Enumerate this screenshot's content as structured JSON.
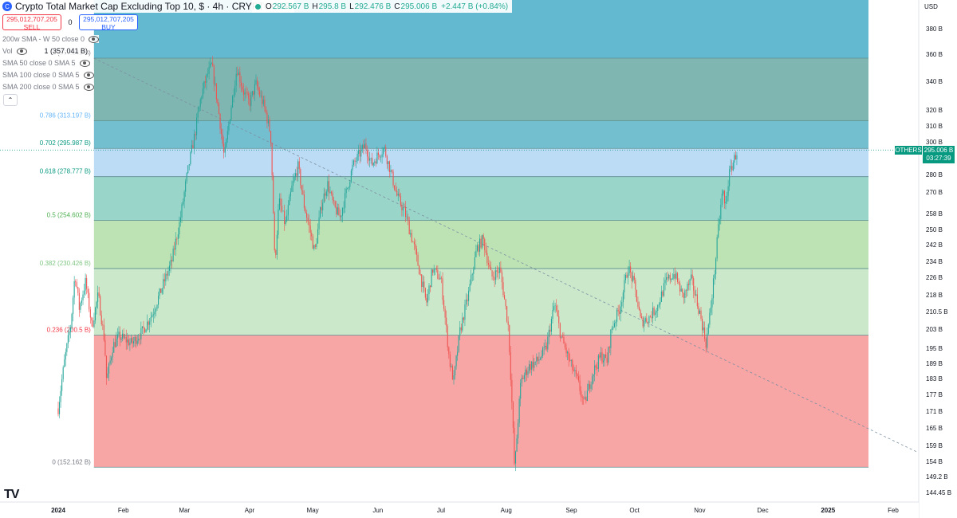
{
  "header": {
    "title": "Crypto Total Market Cap Excluding Top 10, $ · 4h · CRYPTOCAP",
    "logo_glyph": "C",
    "ohlc": {
      "o_label": "O",
      "o": "292.567 B",
      "h_label": "H",
      "h": "295.8 B",
      "l_label": "L",
      "l": "292.476 B",
      "c_label": "C",
      "c": "295.006 B",
      "change": "+2.447 B (+0.84%)"
    }
  },
  "trade": {
    "sell_price": "295,012,707,205",
    "sell_label": "SELL",
    "spread": "0",
    "buy_price": "295,012,707,205",
    "buy_label": "BUY"
  },
  "indicators": [
    {
      "label": "200w SMA - W 50 close 0"
    },
    {
      "label": "Vol",
      "value": "1 (357.041 B)"
    },
    {
      "label": "SMA 50 close 0 SMA 5"
    },
    {
      "label": "SMA 100 close 0 SMA 5"
    },
    {
      "label": "SMA 200 close 0 SMA 5"
    }
  ],
  "price_axis": {
    "currency": "USD",
    "ticks": [
      "380 B",
      "360 B",
      "340 B",
      "320 B",
      "310 B",
      "300 B",
      "280 B",
      "270 B",
      "258 B",
      "250 B",
      "242 B",
      "234 B",
      "226 B",
      "218 B",
      "210.5 B",
      "203 B",
      "195 B",
      "189 B",
      "183 B",
      "177 B",
      "171 B",
      "165 B",
      "159 B",
      "154 B",
      "149.2 B",
      "144.45 B"
    ],
    "last_symbol": "OTHERS",
    "last_price": "295.006 B",
    "countdown": "03:27:39"
  },
  "time_axis": {
    "ticks": [
      "2024",
      "Feb",
      "Mar",
      "Apr",
      "May",
      "Jun",
      "Jul",
      "Aug",
      "Sep",
      "Oct",
      "Nov",
      "Dec",
      "2025",
      "Feb"
    ]
  },
  "chart_data": {
    "type": "candlestick",
    "series_name": "OTHERS",
    "timeframe": "4h",
    "y_unit": "B USD",
    "ylim": [
      144.45,
      385
    ],
    "fib_retracement": [
      {
        "level": "0",
        "value": 152.162,
        "label": "0 (152.162 B)",
        "color": "#f7a5a5",
        "text_color": "#787b86"
      },
      {
        "level": "0.236",
        "value": 200.5,
        "label": "0.236 (200.5 B)",
        "color": "#cbe8cb",
        "text_color": "#f23645"
      },
      {
        "level": "0.382",
        "value": 230.426,
        "label": "0.382 (230.426 B)",
        "color": "#bde3b5",
        "text_color": "#81c784"
      },
      {
        "level": "0.5",
        "value": 254.602,
        "label": "0.5 (254.602 B)",
        "color": "#9ad5c9",
        "text_color": "#4caf50"
      },
      {
        "level": "0.618",
        "value": 278.777,
        "label": "0.618 (278.777 B)",
        "color": "#bcdcf5",
        "text_color": "#089981"
      },
      {
        "level": "0.702",
        "value": 295.987,
        "label": "0.702 (295.987 B)",
        "color": "#73bfd0",
        "text_color": "#089981"
      },
      {
        "level": "0.786",
        "value": 313.197,
        "label": "0.786 (313.197 B)",
        "color": "#7fb6b2",
        "text_color": "#64b5f6"
      },
      {
        "level": "1",
        "value": 357.041,
        "label": "1 (357.041 B)",
        "color": "#63b9d0",
        "text_color": "#787b86"
      }
    ],
    "price_path": [
      [
        "2024-01-01",
        172
      ],
      [
        "2024-01-04",
        190
      ],
      [
        "2024-01-07",
        205
      ],
      [
        "2024-01-09",
        228
      ],
      [
        "2024-01-11",
        212
      ],
      [
        "2024-01-14",
        224
      ],
      [
        "2024-01-17",
        204
      ],
      [
        "2024-01-20",
        218
      ],
      [
        "2024-01-23",
        198
      ],
      [
        "2024-01-24",
        182
      ],
      [
        "2024-01-27",
        196
      ],
      [
        "2024-01-30",
        200
      ],
      [
        "2024-02-05",
        197
      ],
      [
        "2024-02-10",
        202
      ],
      [
        "2024-02-15",
        210
      ],
      [
        "2024-02-20",
        223
      ],
      [
        "2024-02-24",
        234
      ],
      [
        "2024-02-28",
        255
      ],
      [
        "2024-03-03",
        285
      ],
      [
        "2024-03-06",
        305
      ],
      [
        "2024-03-09",
        330
      ],
      [
        "2024-03-12",
        345
      ],
      [
        "2024-03-14",
        352
      ],
      [
        "2024-03-17",
        322
      ],
      [
        "2024-03-20",
        290
      ],
      [
        "2024-03-23",
        320
      ],
      [
        "2024-03-26",
        350
      ],
      [
        "2024-03-29",
        333
      ],
      [
        "2024-04-01",
        325
      ],
      [
        "2024-04-04",
        338
      ],
      [
        "2024-04-08",
        322
      ],
      [
        "2024-04-11",
        305
      ],
      [
        "2024-04-13",
        232
      ],
      [
        "2024-04-15",
        265
      ],
      [
        "2024-04-18",
        252
      ],
      [
        "2024-04-21",
        272
      ],
      [
        "2024-04-24",
        285
      ],
      [
        "2024-04-27",
        262
      ],
      [
        "2024-04-30",
        248
      ],
      [
        "2024-05-02",
        238
      ],
      [
        "2024-05-05",
        262
      ],
      [
        "2024-05-08",
        275
      ],
      [
        "2024-05-11",
        262
      ],
      [
        "2024-05-14",
        256
      ],
      [
        "2024-05-17",
        270
      ],
      [
        "2024-05-20",
        285
      ],
      [
        "2024-05-23",
        292
      ],
      [
        "2024-05-26",
        298
      ],
      [
        "2024-05-29",
        286
      ],
      [
        "2024-06-01",
        292
      ],
      [
        "2024-06-04",
        296
      ],
      [
        "2024-06-07",
        282
      ],
      [
        "2024-06-10",
        268
      ],
      [
        "2024-06-14",
        258
      ],
      [
        "2024-06-18",
        242
      ],
      [
        "2024-06-21",
        228
      ],
      [
        "2024-06-24",
        214
      ],
      [
        "2024-06-27",
        230
      ],
      [
        "2024-07-01",
        225
      ],
      [
        "2024-07-05",
        190
      ],
      [
        "2024-07-07",
        182
      ],
      [
        "2024-07-10",
        202
      ],
      [
        "2024-07-14",
        218
      ],
      [
        "2024-07-18",
        240
      ],
      [
        "2024-07-21",
        245
      ],
      [
        "2024-07-25",
        226
      ],
      [
        "2024-07-29",
        230
      ],
      [
        "2024-08-02",
        204
      ],
      [
        "2024-08-05",
        151
      ],
      [
        "2024-08-08",
        182
      ],
      [
        "2024-08-12",
        188
      ],
      [
        "2024-08-16",
        190
      ],
      [
        "2024-08-20",
        195
      ],
      [
        "2024-08-24",
        214
      ],
      [
        "2024-08-27",
        200
      ],
      [
        "2024-08-31",
        190
      ],
      [
        "2024-09-04",
        182
      ],
      [
        "2024-09-07",
        173
      ],
      [
        "2024-09-11",
        185
      ],
      [
        "2024-09-15",
        192
      ],
      [
        "2024-09-18",
        190
      ],
      [
        "2024-09-20",
        203
      ],
      [
        "2024-09-24",
        212
      ],
      [
        "2024-09-28",
        231
      ],
      [
        "2024-10-01",
        222
      ],
      [
        "2024-10-04",
        206
      ],
      [
        "2024-10-08",
        208
      ],
      [
        "2024-10-12",
        213
      ],
      [
        "2024-10-16",
        224
      ],
      [
        "2024-10-20",
        228
      ],
      [
        "2024-10-24",
        217
      ],
      [
        "2024-10-28",
        225
      ],
      [
        "2024-11-01",
        210
      ],
      [
        "2024-11-04",
        197
      ],
      [
        "2024-11-06",
        210
      ],
      [
        "2024-11-08",
        228
      ],
      [
        "2024-11-10",
        252
      ],
      [
        "2024-11-12",
        272
      ],
      [
        "2024-11-13",
        260
      ],
      [
        "2024-11-15",
        280
      ],
      [
        "2024-11-17",
        288
      ],
      [
        "2024-11-19",
        295
      ]
    ],
    "trendline": {
      "from": [
        "2024-01-18",
        357
      ],
      "to": [
        "2025-02-28",
        152
      ],
      "style": "dashed"
    }
  },
  "colors": {
    "up": "#26a69a",
    "down": "#ef5350",
    "accent": "#089981"
  }
}
